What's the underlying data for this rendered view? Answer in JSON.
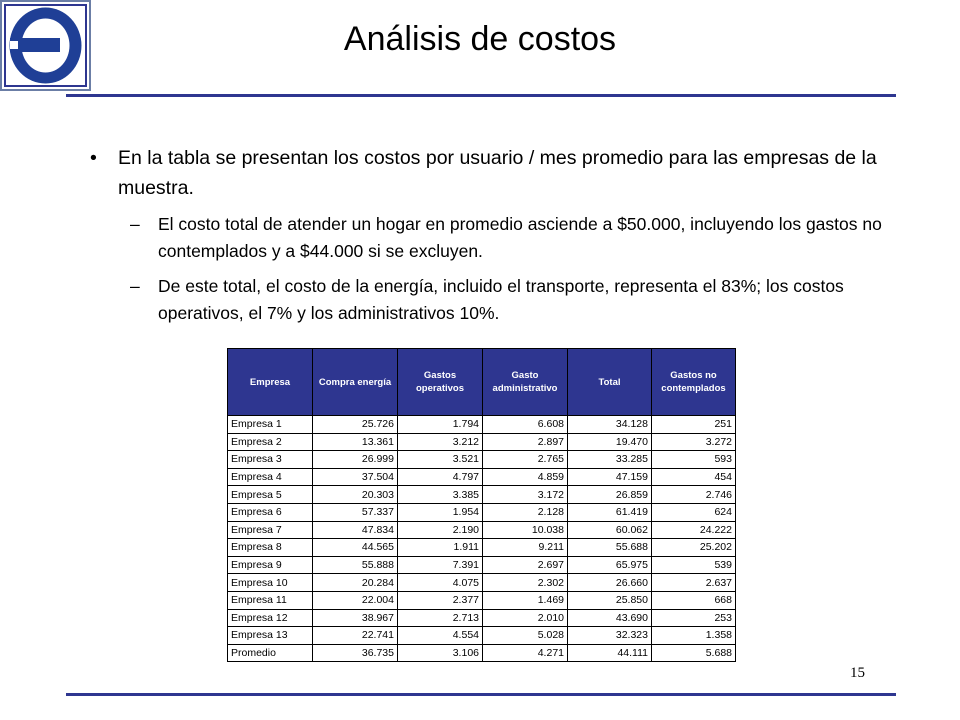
{
  "slide": {
    "title": "Análisis de costos",
    "page_number": "15"
  },
  "body": {
    "bullet_1": "En la tabla se presentan los costos por usuario / mes promedio para las empresas de la muestra.",
    "sub_1": "El costo total de atender un hogar en promedio asciende a $50.000, incluyendo los gastos no contemplados y a $44.000 si se excluyen.",
    "sub_2": "De este total, el costo de la energía, incluido el transporte, representa el 83%; los costos operativos, el 7% y los administrativos 10%."
  },
  "table": {
    "headers": [
      "Empresa",
      "Compra energía",
      "Gastos operativos",
      "Gasto administrativo",
      "Total",
      "Gastos no contemplados"
    ],
    "rows": [
      [
        "Empresa 1",
        "25.726",
        "1.794",
        "6.608",
        "34.128",
        "251"
      ],
      [
        "Empresa 2",
        "13.361",
        "3.212",
        "2.897",
        "19.470",
        "3.272"
      ],
      [
        "Empresa 3",
        "26.999",
        "3.521",
        "2.765",
        "33.285",
        "593"
      ],
      [
        "Empresa 4",
        "37.504",
        "4.797",
        "4.859",
        "47.159",
        "454"
      ],
      [
        "Empresa 5",
        "20.303",
        "3.385",
        "3.172",
        "26.859",
        "2.746"
      ],
      [
        "Empresa 6",
        "57.337",
        "1.954",
        "2.128",
        "61.419",
        "624"
      ],
      [
        "Empresa 7",
        "47.834",
        "2.190",
        "10.038",
        "60.062",
        "24.222"
      ],
      [
        "Empresa 8",
        "44.565",
        "1.911",
        "9.211",
        "55.688",
        "25.202"
      ],
      [
        "Empresa 9",
        "55.888",
        "7.391",
        "2.697",
        "65.975",
        "539"
      ],
      [
        "Empresa 10",
        "20.284",
        "4.075",
        "2.302",
        "26.660",
        "2.637"
      ],
      [
        "Empresa 11",
        "22.004",
        "2.377",
        "1.469",
        "25.850",
        "668"
      ],
      [
        "Empresa 12",
        "38.967",
        "2.713",
        "2.010",
        "43.690",
        "253"
      ],
      [
        "Empresa 13",
        "22.741",
        "4.554",
        "5.028",
        "32.323",
        "1.358"
      ]
    ],
    "average": [
      "Promedio",
      "36.735",
      "3.106",
      "4.271",
      "44.111",
      "5.688"
    ]
  },
  "colors": {
    "accent": "#2E3690",
    "logo_frame": "#6B7EA6"
  },
  "icons": {
    "logo": "company-logo"
  }
}
